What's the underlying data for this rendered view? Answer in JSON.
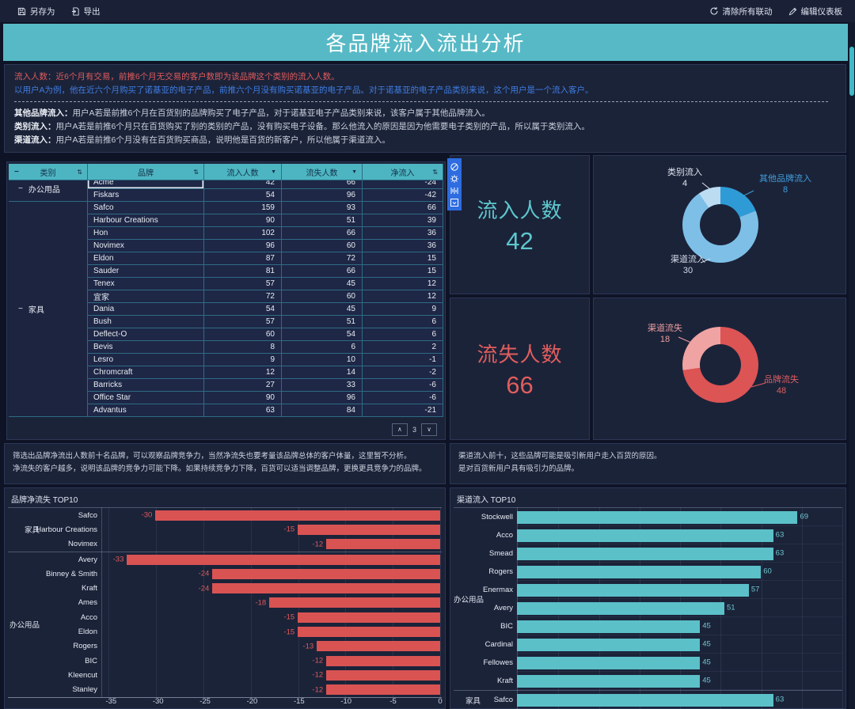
{
  "toolbar": {
    "save_as": "另存为",
    "export": "导出",
    "clear_linkage": "清除所有联动",
    "edit_dashboard": "编辑仪表板"
  },
  "title": "各品牌流入流出分析",
  "description": {
    "line1_label": "流入人数：",
    "line1_text": "近6个月有交易，前推6个月无交易的客户数即为该品牌这个类别的流入人数。",
    "line2": "以用户A为例，他在近六个月购买了诺基亚的电子产品，前推六个月没有购买诺基亚的电子产品。对于诺基亚的电子产品类别来说，这个用户是一个流入客户。",
    "items": [
      {
        "label": "其他品牌流入：",
        "text": "用户A若是前推6个月在百货别的品牌购买了电子产品，对于诺基亚电子产品类别来说，该客户属于其他品牌流入。"
      },
      {
        "label": "类别流入：",
        "text": "用户A若是前推6个月只在百货购买了别的类别的产品，没有购买电子设备。那么他流入的原因是因为他需要电子类别的产品，所以属于类别流入。"
      },
      {
        "label": "渠道流入：",
        "text": "用户A若是前推6个月没有在百货购买商品，说明他是百货的新客户，所以他属于渠道流入。"
      }
    ]
  },
  "icons": {
    "sort": "⇅",
    "filter": "▼",
    "collapse": "−",
    "page_up": "∧",
    "page_down": "∨"
  },
  "table": {
    "columns": [
      {
        "label": "类别",
        "icon": "sort",
        "collapse": true
      },
      {
        "label": "品牌",
        "icon": "sort"
      },
      {
        "label": "流入人数",
        "icon": "filter"
      },
      {
        "label": "流失人数",
        "icon": "filter"
      },
      {
        "label": "净流入",
        "icon": "sort"
      }
    ],
    "groups": [
      {
        "category": "办公用品",
        "rows": [
          [
            "Acme",
            42,
            66,
            -24
          ],
          [
            "Fiskars",
            54,
            96,
            -42
          ]
        ]
      },
      {
        "category": "家具",
        "rows": [
          [
            "Safco",
            159,
            93,
            66
          ],
          [
            "Harbour Creations",
            90,
            51,
            39
          ],
          [
            "Hon",
            102,
            66,
            36
          ],
          [
            "Novimex",
            96,
            60,
            36
          ],
          [
            "Eldon",
            87,
            72,
            15
          ],
          [
            "Sauder",
            81,
            66,
            15
          ],
          [
            "Tenex",
            57,
            45,
            12
          ],
          [
            "宜家",
            72,
            60,
            12
          ],
          [
            "Dania",
            54,
            45,
            9
          ],
          [
            "Bush",
            57,
            51,
            6
          ],
          [
            "Deflect-O",
            60,
            54,
            6
          ],
          [
            "Bevis",
            8,
            6,
            2
          ],
          [
            "Lesro",
            9,
            10,
            -1
          ],
          [
            "Chromcraft",
            12,
            14,
            -2
          ],
          [
            "Barricks",
            27,
            33,
            -6
          ],
          [
            "Office Star",
            90,
            96,
            -6
          ],
          [
            "Advantus",
            63,
            84,
            -21
          ]
        ]
      }
    ],
    "selected_brand": "Acme",
    "page": "3"
  },
  "kpi_cards": [
    {
      "label": "流入人数",
      "value": "42",
      "color": "#5ec7cd"
    },
    {
      "label": "流失人数",
      "value": "66",
      "color": "#e05d5d"
    }
  ],
  "notes": {
    "left": [
      "筛选出品牌净流出人数前十名品牌，可以观察品牌竞争力，当然净流失也要考量该品牌总体的客户体量，这里暂不分析。",
      "净流失的客户越多，说明该品牌的竞争力可能下降。如果持续竞争力下降，百货可以适当调整品牌，更换更具竞争力的品牌。"
    ],
    "right": [
      "渠道流入前十，这些品牌可能是吸引新用户走入百货的原因。",
      "是对百货新用户具有吸引力的品牌。"
    ]
  },
  "chart_data": [
    {
      "id": "inflow_donut",
      "type": "pie",
      "total": 42,
      "slices": [
        {
          "label": "其他品牌流入",
          "value": 8,
          "color": "#2e9bd6",
          "label_color": "#3f9edb"
        },
        {
          "label": "渠道流入",
          "value": 30,
          "color": "#7dbfe6",
          "label_color": "#d2dae8"
        },
        {
          "label": "类别流入",
          "value": 4,
          "color": "#bcdcf2",
          "label_color": "#e2e7ef"
        }
      ]
    },
    {
      "id": "outflow_donut",
      "type": "pie",
      "total": 66,
      "slices": [
        {
          "label": "品牌流失",
          "value": 48,
          "color": "#dc5454",
          "label_color": "#de5e5e"
        },
        {
          "label": "渠道流失",
          "value": 18,
          "color": "#f0a3a3",
          "label_color": "#ec9e9e"
        }
      ]
    },
    {
      "id": "net_loss_top10",
      "type": "bar",
      "orientation": "horizontal",
      "title": "品牌净流失 TOP10",
      "bar_color": "#d95353",
      "value_color": "#de5b5b",
      "xlim": [
        -35.7,
        0
      ],
      "ticks": [
        -35,
        -30,
        -25,
        -20,
        -15,
        -10,
        -5,
        0
      ],
      "groups": [
        {
          "category": "家具",
          "bars": [
            {
              "label": "Safco",
              "value": -30
            },
            {
              "label": "Harbour Creations",
              "value": -15
            },
            {
              "label": "Novimex",
              "value": -12
            }
          ]
        },
        {
          "category": "办公用品",
          "bars": [
            {
              "label": "Avery",
              "value": -33
            },
            {
              "label": "Binney & Smith",
              "value": -24
            },
            {
              "label": "Kraft",
              "value": -24
            },
            {
              "label": "Ames",
              "value": -18
            },
            {
              "label": "Acco",
              "value": -15
            },
            {
              "label": "Eldon",
              "value": -15
            },
            {
              "label": "Rogers",
              "value": -13
            },
            {
              "label": "BIC",
              "value": -12
            },
            {
              "label": "Kleencut",
              "value": -12
            },
            {
              "label": "Stanley",
              "value": -12
            }
          ]
        }
      ]
    },
    {
      "id": "channel_inflow_top10",
      "type": "bar",
      "orientation": "horizontal",
      "title": "渠道流入 TOP10",
      "bar_color": "#5bc0c8",
      "value_color": "#6fc6ce",
      "xlim": [
        0,
        80
      ],
      "gridline_step": 10,
      "groups": [
        {
          "category": "办公用品",
          "bars": [
            {
              "label": "Stockwell",
              "value": 69
            },
            {
              "label": "Acco",
              "value": 63
            },
            {
              "label": "Smead",
              "value": 63
            },
            {
              "label": "Rogers",
              "value": 60
            },
            {
              "label": "Enermax",
              "value": 57
            },
            {
              "label": "Avery",
              "value": 51
            },
            {
              "label": "BIC",
              "value": 45
            },
            {
              "label": "Cardinal",
              "value": 45
            },
            {
              "label": "Fellowes",
              "value": 45
            },
            {
              "label": "Kraft",
              "value": 45
            }
          ]
        },
        {
          "category": "家具",
          "bars": [
            {
              "label": "Safco",
              "value": 63
            }
          ]
        }
      ]
    }
  ]
}
